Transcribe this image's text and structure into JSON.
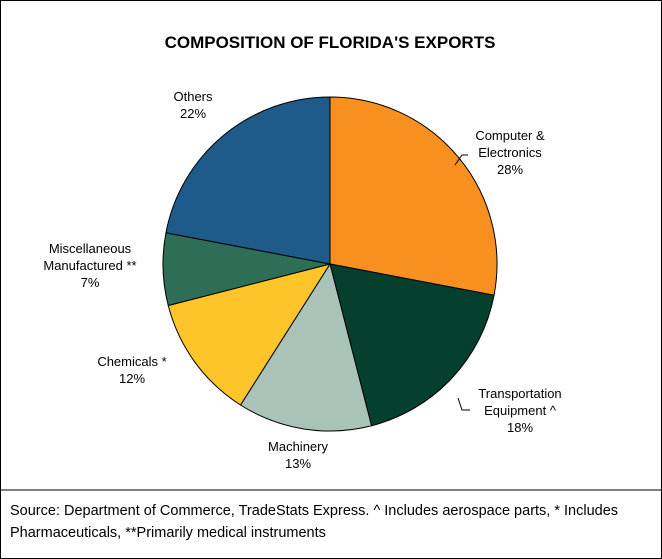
{
  "chart_data": {
    "type": "pie",
    "title": "COMPOSITION OF FLORIDA'S EXPORTS",
    "categories": [
      "Computer & Electronics",
      "Transportation Equipment ^",
      "Machinery",
      "Chemicals *",
      "Miscellaneous Manufactured **",
      "Others"
    ],
    "values": [
      28,
      18,
      13,
      12,
      7,
      22
    ],
    "value_labels": [
      "28%",
      "18%",
      "13%",
      "12%",
      "7%",
      "22%"
    ],
    "colors": [
      "#F7901E",
      "#053F2E",
      "#AAC3B9",
      "#FDC52A",
      "#2E6E56",
      "#1E5B8A"
    ],
    "source": "Source: Department of Commerce, TradeStats Express.  ^ Includes aerospace parts, * Includes Pharmaceuticals, **Primarily medical instruments"
  }
}
